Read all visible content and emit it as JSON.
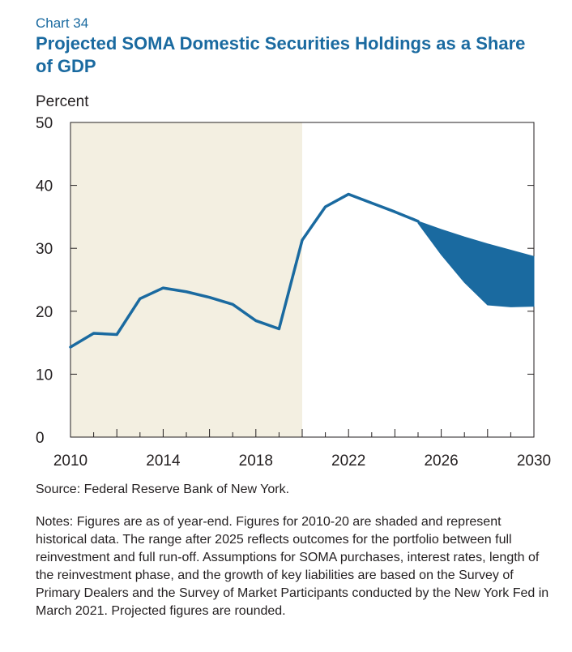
{
  "header": {
    "chart_number": "Chart 34",
    "title": "Projected SOMA Domestic Securities Holdings as a Share of GDP"
  },
  "chart_data": {
    "type": "line",
    "title": "Projected SOMA Domestic Securities Holdings as a Share of GDP",
    "ylabel": "Percent",
    "xlabel": "",
    "xlim": [
      2010,
      2030
    ],
    "ylim": [
      0,
      50
    ],
    "x_ticks": [
      2010,
      2014,
      2018,
      2022,
      2026,
      2030
    ],
    "y_ticks": [
      0,
      10,
      20,
      30,
      40,
      50
    ],
    "shaded_region": {
      "x_start": 2010,
      "x_end": 2020,
      "label": "historical data",
      "color": "#f3efe1"
    },
    "series": [
      {
        "name": "SOMA holdings share of GDP",
        "color": "#1a6aa0",
        "x": [
          2010,
          2011,
          2012,
          2013,
          2014,
          2015,
          2016,
          2017,
          2018,
          2019,
          2020,
          2021,
          2022,
          2023,
          2024,
          2025
        ],
        "values": [
          14.3,
          16.5,
          16.3,
          22.0,
          23.7,
          23.1,
          22.2,
          21.1,
          18.5,
          17.2,
          31.3,
          36.6,
          38.6,
          37.2,
          35.8,
          34.3
        ]
      }
    ],
    "range_band": {
      "name": "Range between full reinvestment and full run-off",
      "color": "#1a6aa0",
      "x": [
        2025,
        2026,
        2027,
        2028,
        2029,
        2030
      ],
      "upper": [
        34.3,
        33.0,
        31.8,
        30.7,
        29.7,
        28.7
      ],
      "lower": [
        34.0,
        29.0,
        24.6,
        21.0,
        20.7,
        20.8
      ]
    }
  },
  "source": "Source: Federal Reserve Bank of New York.",
  "notes": "Notes: Figures are as of year-end. Figures for 2010-20 are shaded and represent historical data. The range after 2025 reflects outcomes for the portfolio between full reinvestment and full run-off. Assumptions for SOMA purchases, interest rates, length of the reinvestment phase, and the growth of key liabilities are based on the Survey of Primary Dealers and the Survey of Market Participants conducted by the New York Fed in March 2021. Projected figures are rounded."
}
